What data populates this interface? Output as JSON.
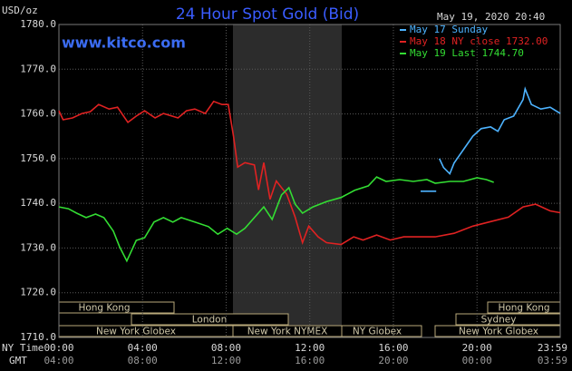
{
  "chart_data": {
    "type": "line",
    "title": "24 Hour Spot Gold (Bid)",
    "website": "www.kitco.com",
    "timestamp": "May 19, 2020 20:40",
    "y_label": "USD/oz",
    "x_label": "NY Time",
    "x2_label": "GMT",
    "ylim": [
      1710,
      1780
    ],
    "yticks": [
      {
        "value": 1780,
        "label": "1780.0"
      },
      {
        "value": 1770,
        "label": "1770.0"
      },
      {
        "value": 1760,
        "label": "1760.0"
      },
      {
        "value": 1750,
        "label": "1750.0"
      },
      {
        "value": 1740,
        "label": "1740.0"
      },
      {
        "value": 1730,
        "label": "1730.0"
      },
      {
        "value": 1720,
        "label": "1720.0"
      },
      {
        "value": 1710,
        "label": "1710.0"
      }
    ],
    "xlim": [
      0,
      23.98
    ],
    "xticks": [
      {
        "value": 0,
        "label": "00:00"
      },
      {
        "value": 4,
        "label": "04:00"
      },
      {
        "value": 8,
        "label": "08:00"
      },
      {
        "value": 12,
        "label": "12:00"
      },
      {
        "value": 16,
        "label": "16:00"
      },
      {
        "value": 20,
        "label": "20:00"
      },
      {
        "value": 23.98,
        "label": "23:59"
      }
    ],
    "x2ticks": [
      {
        "value": 0,
        "label": "04:00"
      },
      {
        "value": 4,
        "label": "08:00"
      },
      {
        "value": 8,
        "label": "12:00"
      },
      {
        "value": 12,
        "label": "16:00"
      },
      {
        "value": 16,
        "label": "20:00"
      },
      {
        "value": 20,
        "label": "00:00"
      },
      {
        "value": 23.98,
        "label": "03:59"
      }
    ],
    "grid": true,
    "sessions": [
      "Hong Kong",
      "Hong Kong",
      "London",
      "Sydney",
      "New York Globex",
      "New York NYMEX",
      "NY Globex",
      "New York Globex"
    ],
    "series": [
      {
        "name": "May 17 Sunday",
        "color": "#4db3ff",
        "x": [
          17.3,
          18.05,
          18.1,
          18.2,
          18.4,
          18.7,
          18.9,
          19.35,
          19.8,
          20.2,
          20.65,
          21,
          21.3,
          21.75,
          22.2,
          22.3,
          22.6,
          23.05,
          23.5,
          23.98
        ],
        "values": [
          1742.7,
          1742.7,
          null,
          1750.0,
          1748.0,
          1746.6,
          1749.0,
          1752.0,
          1755.0,
          1756.7,
          1757.1,
          1756.1,
          1758.7,
          1759.5,
          1763.2,
          1765.6,
          1762.1,
          1761.1,
          1761.5,
          1760.1
        ]
      },
      {
        "name": "May 18 NY close 1732.00",
        "color": "#e02222",
        "x": [
          0,
          0.2,
          0.65,
          1.1,
          1.5,
          1.9,
          2.4,
          2.8,
          3.3,
          3.7,
          4.1,
          4.6,
          5,
          5.7,
          6.1,
          6.5,
          7,
          7.4,
          7.8,
          8.1,
          8.35,
          8.55,
          8.9,
          9.35,
          9.55,
          9.8,
          10.1,
          10.4,
          10.9,
          11.3,
          11.65,
          11.95,
          12.4,
          12.8,
          13.5,
          14.1,
          14.55,
          15.2,
          15.85,
          16.5,
          17.2,
          18,
          18.9,
          19.8,
          20.65,
          21.5,
          22.2,
          22.8,
          23.5,
          23.98
        ],
        "values": [
          1760.7,
          1758.7,
          1759.1,
          1760.1,
          1760.5,
          1762.1,
          1761.1,
          1761.5,
          1758.1,
          1759.5,
          1760.7,
          1759.1,
          1760.1,
          1759.1,
          1760.7,
          1761.1,
          1760.1,
          1762.8,
          1762.1,
          1762.1,
          1755.0,
          1748.1,
          1749.1,
          1748.6,
          1743.0,
          1749.1,
          1740.9,
          1745.0,
          1742.0,
          1736.9,
          1731.2,
          1734.9,
          1732.5,
          1731.2,
          1730.8,
          1732.5,
          1731.8,
          1732.9,
          1731.8,
          1732.5,
          1732.5,
          1732.5,
          1733.3,
          1734.9,
          1735.9,
          1736.9,
          1739.2,
          1739.8,
          1738.3,
          1737.9
        ]
      },
      {
        "name": "May 19 Last 1744.70",
        "color": "#33dd33",
        "x": [
          0,
          0.45,
          0.85,
          1.3,
          1.75,
          2.15,
          2.6,
          2.9,
          3.25,
          3.7,
          4.1,
          4.55,
          5,
          5.45,
          5.85,
          6.5,
          7.15,
          7.6,
          8.05,
          8.5,
          8.9,
          9.35,
          9.8,
          10.2,
          10.65,
          11,
          11.3,
          11.65,
          12.15,
          12.8,
          13.5,
          14.15,
          14.8,
          15.2,
          15.65,
          16.3,
          16.95,
          17.6,
          18,
          18.7,
          19.35,
          20,
          20.45,
          20.8
        ],
        "values": [
          1739.2,
          1738.8,
          1737.8,
          1736.8,
          1737.6,
          1736.8,
          1733.8,
          1730.3,
          1727.1,
          1731.7,
          1732.3,
          1735.8,
          1736.8,
          1735.8,
          1736.8,
          1735.8,
          1734.8,
          1733.1,
          1734.4,
          1733.1,
          1734.4,
          1736.8,
          1739.2,
          1736.4,
          1741.9,
          1743.5,
          1739.8,
          1737.8,
          1739.2,
          1740.4,
          1741.3,
          1742.9,
          1743.9,
          1745.9,
          1744.9,
          1745.3,
          1744.9,
          1745.3,
          1744.5,
          1744.9,
          1744.9,
          1745.7,
          1745.3,
          1744.7
        ]
      }
    ]
  }
}
